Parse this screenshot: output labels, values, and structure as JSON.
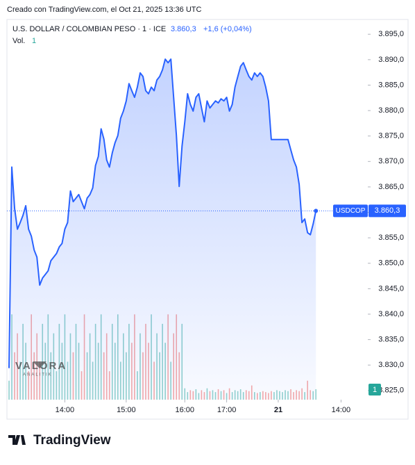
{
  "chart_data": {
    "type": "line",
    "credit": "Creado con TradingView.com, el Oct 21, 2025 13:36 UTC",
    "title": "U.S. DOLLAR / COLOMBIAN PESO · 1 · ICE",
    "last_price": 3860.3,
    "last_price_label": "3.860,3",
    "change_label": "+1,6 (+0,04%)",
    "volume_label": "Vol.",
    "volume_indicator_label": "1",
    "volume_badge": "1",
    "watermark": "VALORA",
    "watermark_sub": "ANALITIK",
    "footer": "TradingView",
    "x": [
      0,
      1,
      2,
      3,
      4,
      5,
      6,
      7,
      8,
      9,
      10,
      11,
      12,
      13,
      14,
      15,
      16,
      17,
      18,
      19,
      20,
      21,
      22,
      23,
      24,
      25,
      26,
      27,
      28,
      29,
      30,
      31,
      32,
      33,
      34,
      35,
      36,
      37,
      38,
      39,
      40,
      41,
      42,
      43,
      44,
      45,
      46,
      47,
      48,
      49,
      50,
      51,
      52,
      53,
      54,
      55,
      56,
      57,
      58,
      59,
      60,
      61,
      62,
      63,
      64,
      65,
      66,
      67,
      68,
      69,
      70,
      71,
      72,
      73,
      74,
      75,
      76,
      77,
      78,
      79,
      80,
      81,
      82,
      83,
      84,
      85,
      86,
      87,
      88,
      89,
      90,
      91,
      92,
      93,
      94,
      95,
      96,
      97,
      98,
      99,
      100,
      101,
      102,
      103,
      104,
      105,
      106,
      107,
      108,
      109,
      110
    ],
    "xlim": [
      -0.75,
      128.6
    ],
    "xticks": [
      {
        "value": 20,
        "label": "14:00"
      },
      {
        "value": 42,
        "label": "15:00"
      },
      {
        "value": 63,
        "label": "16:00"
      },
      {
        "value": 78,
        "label": "17:00"
      },
      {
        "value": 96.5,
        "label": "21"
      },
      {
        "value": 119,
        "label": "14:00"
      }
    ],
    "ylim": [
      3823.2,
      3897.9
    ],
    "yticks": [
      {
        "value": 3825,
        "label": "3.825,0"
      },
      {
        "value": 3830,
        "label": "3.830,0"
      },
      {
        "value": 3835,
        "label": "3.835,0"
      },
      {
        "value": 3840,
        "label": "3.840,0"
      },
      {
        "value": 3845,
        "label": "3.845,0"
      },
      {
        "value": 3850,
        "label": "3.850,0"
      },
      {
        "value": 3855,
        "label": "3.855,0"
      },
      {
        "value": 3860,
        "label": "3.860,0"
      },
      {
        "value": 3865,
        "label": "3.865,0"
      },
      {
        "value": 3870,
        "label": "3.870,0"
      },
      {
        "value": 3875,
        "label": "3.875,0"
      },
      {
        "value": 3880,
        "label": "3.880,0"
      },
      {
        "value": 3885,
        "label": "3.885,0"
      },
      {
        "value": 3890,
        "label": "3.890,0"
      },
      {
        "value": 3895,
        "label": "3.895,0"
      }
    ],
    "series": [
      {
        "name": "USDCOP",
        "color": "#2962ff",
        "values": [
          3829.4,
          3868.9,
          3860.7,
          3856.7,
          3858.0,
          3859.4,
          3861.3,
          3856.7,
          3855.3,
          3852.6,
          3851.2,
          3845.7,
          3847.1,
          3847.8,
          3848.5,
          3850.5,
          3851.2,
          3851.9,
          3853.2,
          3853.9,
          3856.7,
          3858.0,
          3864.2,
          3862.1,
          3862.8,
          3863.5,
          3862.1,
          3860.7,
          3862.8,
          3863.5,
          3864.8,
          3869.2,
          3871.0,
          3876.4,
          3874.4,
          3870.3,
          3868.9,
          3871.7,
          3873.7,
          3875.1,
          3878.5,
          3879.9,
          3881.9,
          3885.3,
          3883.9,
          3882.6,
          3884.6,
          3887.4,
          3886.7,
          3883.9,
          3883.3,
          3884.6,
          3883.9,
          3886.0,
          3886.7,
          3888.0,
          3890.1,
          3889.4,
          3890.1,
          3882.6,
          3875.1,
          3865.1,
          3873.0,
          3877.8,
          3883.3,
          3881.2,
          3879.9,
          3882.6,
          3883.3,
          3880.5,
          3877.8,
          3881.9,
          3880.5,
          3881.2,
          3881.9,
          3881.5,
          3882.3,
          3881.9,
          3882.6,
          3879.9,
          3881.2,
          3884.6,
          3886.7,
          3888.7,
          3889.4,
          3888.0,
          3886.7,
          3886.0,
          3887.4,
          3886.7,
          3887.4,
          3886.7,
          3884.6,
          3881.9,
          3874.3,
          3874.3,
          3874.3,
          3874.3,
          3874.3,
          3874.3,
          3874.3,
          3872.3,
          3870.3,
          3868.9,
          3865.5,
          3858.0,
          3858.7,
          3856.0,
          3855.6,
          3857.7,
          3860.3
        ]
      }
    ],
    "volume": {
      "values": [
        2,
        9,
        5,
        7,
        4,
        8,
        6,
        3,
        9,
        5,
        7,
        4,
        8,
        6,
        9,
        5,
        7,
        3,
        8,
        6,
        9,
        4,
        7,
        5,
        8,
        6,
        3,
        9,
        5,
        7,
        4,
        8,
        6,
        9,
        5,
        7,
        3,
        8,
        6,
        9,
        4,
        7,
        5,
        8,
        6,
        9,
        3,
        7,
        5,
        8,
        6,
        9,
        4,
        7,
        5,
        8,
        6,
        9,
        4,
        7,
        9,
        5,
        8,
        1.2,
        0.8,
        1,
        0.9,
        1.1,
        0.7,
        1,
        0.8,
        1.2,
        0.9,
        1,
        0.8,
        1.1,
        0.9,
        1,
        0.7,
        1.2,
        0.8,
        1,
        0.9,
        1.1,
        0.8,
        1,
        0.9,
        1.5,
        0.8,
        0.7,
        0.8,
        0.9,
        0.8,
        0.7,
        0.9,
        0.8,
        1,
        0.9,
        0.8,
        1,
        0.9,
        1.1,
        0.8,
        1,
        0.9,
        1.2,
        0.8,
        2,
        1,
        0.9,
        1.1
      ],
      "vlim": [
        0,
        11
      ],
      "up_color": "#26a69a",
      "down_color": "#ef5350"
    }
  }
}
